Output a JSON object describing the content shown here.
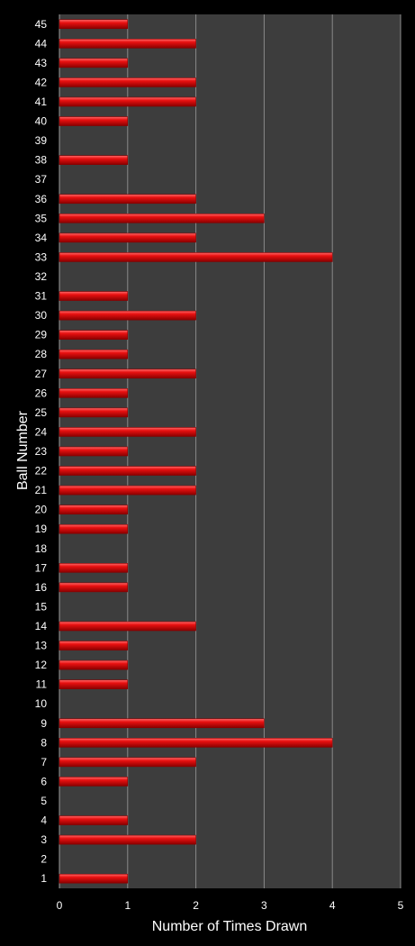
{
  "chart_data": {
    "type": "bar",
    "orientation": "horizontal",
    "xlabel": "Number of Times Drawn",
    "ylabel": "Ball Number",
    "xlim": [
      0,
      5
    ],
    "xticks": [
      "0",
      "1",
      "2",
      "3",
      "4",
      "5"
    ],
    "grid": true,
    "legend": "none",
    "categories": [
      "1",
      "2",
      "3",
      "4",
      "5",
      "6",
      "7",
      "8",
      "9",
      "10",
      "11",
      "12",
      "13",
      "14",
      "15",
      "16",
      "17",
      "18",
      "19",
      "20",
      "21",
      "22",
      "23",
      "24",
      "25",
      "26",
      "27",
      "28",
      "29",
      "30",
      "31",
      "32",
      "33",
      "34",
      "35",
      "36",
      "37",
      "38",
      "39",
      "40",
      "41",
      "42",
      "43",
      "44",
      "45"
    ],
    "values": [
      1,
      0,
      2,
      1,
      0,
      1,
      2,
      4,
      3,
      0,
      1,
      1,
      1,
      2,
      0,
      1,
      1,
      0,
      1,
      1,
      2,
      2,
      1,
      2,
      1,
      1,
      2,
      1,
      1,
      2,
      1,
      0,
      4,
      2,
      3,
      2,
      0,
      1,
      0,
      1,
      2,
      2,
      1,
      2,
      1
    ],
    "colors": {
      "background": "#000000",
      "plot_area": "#3d3d3d",
      "gridline": "#8a8a8a",
      "bar": "#e81010",
      "bar_highlight": "#ff6a6a",
      "bar_shadow": "#8a0000",
      "text": "#ffffff"
    }
  }
}
